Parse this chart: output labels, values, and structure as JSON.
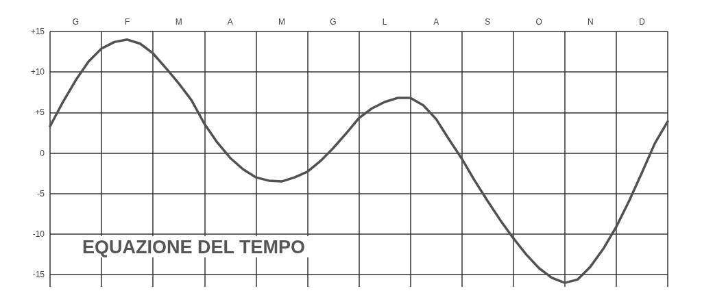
{
  "chart_data": {
    "type": "line",
    "title": "EQUAZIONE DEL TEMPO",
    "categories": [
      null,
      null,
      "G",
      null,
      null,
      null,
      "F",
      null,
      null,
      null,
      "M",
      null,
      null,
      null,
      "A",
      null,
      null,
      null,
      "M",
      null,
      null,
      null,
      "G",
      null,
      null,
      null,
      "L",
      null,
      null,
      null,
      "A",
      null,
      null,
      null,
      "S",
      null,
      null,
      null,
      "O",
      null,
      null,
      null,
      "N",
      null,
      null,
      null,
      "D",
      null,
      null
    ],
    "ylim": [
      -16.5,
      15
    ],
    "yticks": [
      {
        "value": 15,
        "label": "+15"
      },
      {
        "value": 10,
        "label": "+10"
      },
      {
        "value": 5,
        "label": "+5"
      },
      0,
      -5,
      -10,
      -15
    ],
    "grid": true,
    "marker": "none",
    "line_style": "solid",
    "series": [
      {
        "color": "#555050",
        "values": [
          3.3,
          6.3,
          9.0,
          11.3,
          12.9,
          13.7,
          14.0,
          13.5,
          12.3,
          10.5,
          8.6,
          6.5,
          3.6,
          1.3,
          -0.6,
          -2.0,
          -3.0,
          -3.4,
          -3.5,
          -3.0,
          -2.3,
          -1.0,
          0.6,
          2.4,
          4.3,
          5.5,
          6.3,
          6.8,
          6.8,
          5.9,
          4.2,
          1.7,
          -0.7,
          -3.4,
          -5.9,
          -8.3,
          -10.5,
          -12.5,
          -14.2,
          -15.4,
          -16.0,
          -15.6,
          -14.0,
          -11.8,
          -9.1,
          -5.9,
          -2.4,
          1.2,
          3.9
        ]
      }
    ]
  }
}
